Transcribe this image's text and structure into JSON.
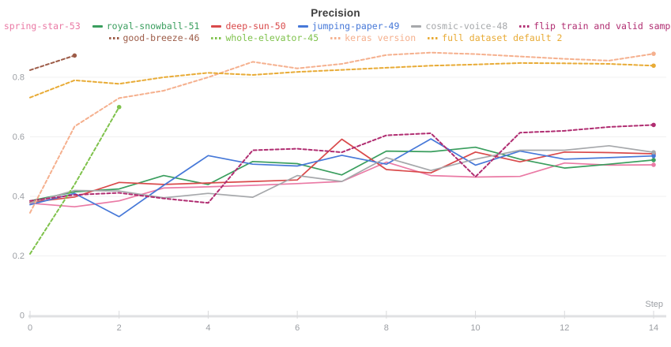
{
  "chart_data": {
    "type": "line",
    "title": "Precision",
    "xlabel": "Step",
    "legend_position": "top",
    "grid": "horizontal",
    "x": [
      0,
      1,
      2,
      3,
      4,
      5,
      6,
      7,
      8,
      9,
      10,
      11,
      12,
      13,
      14
    ],
    "x_ticks": [
      0,
      2,
      4,
      6,
      8,
      10,
      12,
      14
    ],
    "y_ticks": [
      0,
      0.2,
      0.4,
      0.6,
      0.8
    ],
    "y_tick_labels": [
      "0",
      "0.2",
      "0.4",
      "0.6",
      "0.8"
    ],
    "xlim": [
      0,
      14
    ],
    "ylim": [
      0,
      0.9
    ],
    "series": [
      {
        "name": "spring-star-53",
        "color": "#ea7aa5",
        "style": "solid",
        "values": [
          0.377,
          0.365,
          0.385,
          0.428,
          0.432,
          0.437,
          0.443,
          0.45,
          0.515,
          0.47,
          0.465,
          0.467,
          0.512,
          0.505,
          0.506
        ]
      },
      {
        "name": "royal-snowball-51",
        "color": "#3a9e5e",
        "style": "solid",
        "values": [
          0.385,
          0.415,
          0.425,
          0.47,
          0.44,
          0.517,
          0.51,
          0.472,
          0.552,
          0.55,
          0.565,
          0.525,
          0.495,
          0.508,
          0.522
        ]
      },
      {
        "name": "deep-sun-50",
        "color": "#d94a4b",
        "style": "solid",
        "values": [
          0.38,
          0.398,
          0.447,
          0.44,
          0.445,
          0.45,
          0.455,
          0.592,
          0.49,
          0.479,
          0.549,
          0.516,
          0.549,
          0.547,
          0.543
        ]
      },
      {
        "name": "jumping-paper-49",
        "color": "#4678d8",
        "style": "solid",
        "values": [
          0.372,
          0.41,
          0.332,
          0.437,
          0.537,
          0.508,
          0.502,
          0.538,
          0.508,
          0.593,
          0.505,
          0.552,
          0.525,
          0.53,
          0.536
        ]
      },
      {
        "name": "cosmic-voice-48",
        "color": "#a6a8ab",
        "style": "solid",
        "values": [
          0.378,
          0.42,
          0.418,
          0.395,
          0.41,
          0.397,
          0.47,
          0.45,
          0.53,
          0.487,
          0.525,
          0.555,
          0.555,
          0.57,
          0.548
        ]
      },
      {
        "name": "flip train and valid sample",
        "color": "#b02d71",
        "style": "dashed",
        "values": [
          0.385,
          0.405,
          0.412,
          0.393,
          0.378,
          0.555,
          0.56,
          0.548,
          0.605,
          0.612,
          0.466,
          0.614,
          0.62,
          0.633,
          0.64
        ]
      },
      {
        "name": "good-breeze-46",
        "color": "#9d5c48",
        "style": "dashed",
        "values": [
          0.824,
          0.873
        ]
      },
      {
        "name": "whole-elevator-45",
        "color": "#7fc24c",
        "style": "dashed",
        "values": [
          0.207,
          0.44,
          0.7
        ]
      },
      {
        "name": "keras version",
        "color": "#f5b08e",
        "style": "dashed",
        "values": [
          0.345,
          0.635,
          0.73,
          0.755,
          0.8,
          0.852,
          0.83,
          0.845,
          0.875,
          0.883,
          0.878,
          0.87,
          0.862,
          0.856,
          0.879
        ]
      },
      {
        "name": "full dataset default 2",
        "color": "#e8ab36",
        "style": "dashed",
        "values": [
          0.732,
          0.79,
          0.778,
          0.8,
          0.815,
          0.808,
          0.818,
          0.825,
          0.832,
          0.839,
          0.843,
          0.848,
          0.847,
          0.845,
          0.839
        ]
      }
    ],
    "legend_rows": [
      6,
      4
    ]
  },
  "palette": {
    "background": "#ffffff",
    "title_text": "#3d3d3d",
    "axis_label": "#9b9ea3",
    "gridline": "#f0f0f1",
    "axis_line": "#e0e1e3",
    "tick_mark": "#d9dadc"
  }
}
